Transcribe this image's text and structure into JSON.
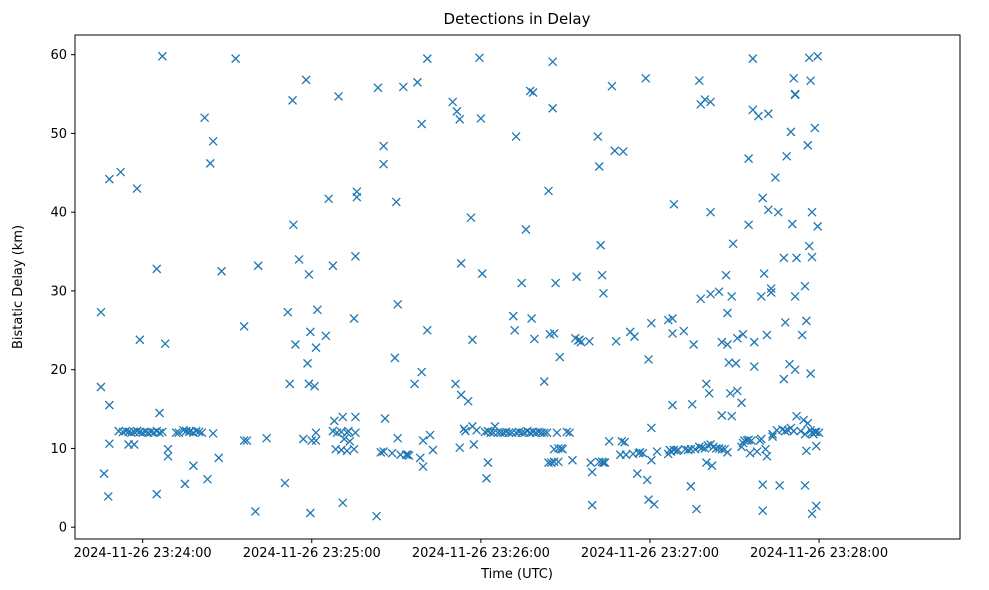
{
  "chart_data": {
    "type": "scatter",
    "title": "Detections in Delay",
    "xlabel": "Time (UTC)",
    "ylabel": "Bistatic Delay (km)",
    "x_unit": "seconds after 2024-11-26 23:23:00",
    "xlim": [
      36,
      350
    ],
    "ylim": [
      -1.5,
      62.5
    ],
    "marker": "x",
    "color": "#1f77b4",
    "grid": false,
    "x_ticks": [
      {
        "value": 60,
        "label": "2024-11-26 23:24:00"
      },
      {
        "value": 120,
        "label": "2024-11-26 23:25:00"
      },
      {
        "value": 180,
        "label": "2024-11-26 23:26:00"
      },
      {
        "value": 240,
        "label": "2024-11-26 23:27:00"
      },
      {
        "value": 300,
        "label": "2024-11-26 23:28:00"
      }
    ],
    "y_ticks": [
      {
        "value": 0,
        "label": "0"
      },
      {
        "value": 10,
        "label": "10"
      },
      {
        "value": 20,
        "label": "20"
      },
      {
        "value": 30,
        "label": "30"
      },
      {
        "value": 40,
        "label": "40"
      },
      {
        "value": 50,
        "label": "50"
      },
      {
        "value": 60,
        "label": "60"
      }
    ],
    "points": [
      [
        45.2,
        27.3
      ],
      [
        45.2,
        17.8
      ],
      [
        46.3,
        6.8
      ],
      [
        47.8,
        3.9
      ],
      [
        48.2,
        15.5
      ],
      [
        48.2,
        10.6
      ],
      [
        48.2,
        44.2
      ],
      [
        51.5,
        12.2
      ],
      [
        52.2,
        45.1
      ],
      [
        53.0,
        12.1
      ],
      [
        54.0,
        12.2
      ],
      [
        55.0,
        12.1
      ],
      [
        55.0,
        10.5
      ],
      [
        56.0,
        12.0
      ],
      [
        57.0,
        12.1
      ],
      [
        57.0,
        10.5
      ],
      [
        58.0,
        43.0
      ],
      [
        58.0,
        12.2
      ],
      [
        59.0,
        23.8
      ],
      [
        59.0,
        12.1
      ],
      [
        60.0,
        12.0
      ],
      [
        61.0,
        12.1
      ],
      [
        62.0,
        12.0
      ],
      [
        63.0,
        12.1
      ],
      [
        64.0,
        12.0
      ],
      [
        65.0,
        32.8
      ],
      [
        65.0,
        4.2
      ],
      [
        65.0,
        12.2
      ],
      [
        66.0,
        14.5
      ],
      [
        66.0,
        12.0
      ],
      [
        67.0,
        59.8
      ],
      [
        67.0,
        12.1
      ],
      [
        68.0,
        23.3
      ],
      [
        69.0,
        9.0
      ],
      [
        69.0,
        9.9
      ],
      [
        71.9,
        12.0
      ],
      [
        72.8,
        12.0
      ],
      [
        74.5,
        12.3
      ],
      [
        75.0,
        5.5
      ],
      [
        75.5,
        12.2
      ],
      [
        76.5,
        12.1
      ],
      [
        77.0,
        12.2
      ],
      [
        78.0,
        7.8
      ],
      [
        78.0,
        12.0
      ],
      [
        79.0,
        12.2
      ],
      [
        80.0,
        12.1
      ],
      [
        81.0,
        12.0
      ],
      [
        82.0,
        52.0
      ],
      [
        83.0,
        6.1
      ],
      [
        84.0,
        46.2
      ],
      [
        85.0,
        49.0
      ],
      [
        85.0,
        11.9
      ],
      [
        87.0,
        8.8
      ],
      [
        88.0,
        32.5
      ],
      [
        93.0,
        59.5
      ],
      [
        96.0,
        25.5
      ],
      [
        96.0,
        11.0
      ],
      [
        97.0,
        11.0
      ],
      [
        100.0,
        2.0
      ],
      [
        101.0,
        33.2
      ],
      [
        104.0,
        11.3
      ],
      [
        110.5,
        5.6
      ],
      [
        111.5,
        27.3
      ],
      [
        112.2,
        18.2
      ],
      [
        113.2,
        54.2
      ],
      [
        113.5,
        38.4
      ],
      [
        114.2,
        23.2
      ],
      [
        115.5,
        34.0
      ],
      [
        117.0,
        11.2
      ],
      [
        118.0,
        56.8
      ],
      [
        119.0,
        32.1
      ],
      [
        118.5,
        20.8
      ],
      [
        119.0,
        18.2
      ],
      [
        119.5,
        24.8
      ],
      [
        119.5,
        1.8
      ],
      [
        120.0,
        11.0
      ],
      [
        121.0,
        17.9
      ],
      [
        121.5,
        22.8
      ],
      [
        122.0,
        27.6
      ],
      [
        121.5,
        11.0
      ],
      [
        121.5,
        12.0
      ],
      [
        125.0,
        24.3
      ],
      [
        126.0,
        41.7
      ],
      [
        127.5,
        33.2
      ],
      [
        127.5,
        12.2
      ],
      [
        128.0,
        13.5
      ],
      [
        128.5,
        9.9
      ],
      [
        129.0,
        12.0
      ],
      [
        129.5,
        54.7
      ],
      [
        130.5,
        9.8
      ],
      [
        130.5,
        12.1
      ],
      [
        131.0,
        14.0
      ],
      [
        131.5,
        11.2
      ],
      [
        132.5,
        12.0
      ],
      [
        132.5,
        9.7
      ],
      [
        133.0,
        12.2
      ],
      [
        133.5,
        10.9
      ],
      [
        131.0,
        3.1
      ],
      [
        135.0,
        26.5
      ],
      [
        135.5,
        34.4
      ],
      [
        135.5,
        12.0
      ],
      [
        136.0,
        42.6
      ],
      [
        136.0,
        41.9
      ],
      [
        135.5,
        14.0
      ],
      [
        135.0,
        9.9
      ],
      [
        143.5,
        55.8
      ],
      [
        144.5,
        9.5
      ],
      [
        145.5,
        48.4
      ],
      [
        145.5,
        46.1
      ],
      [
        146.0,
        13.8
      ],
      [
        145.5,
        9.6
      ],
      [
        148.5,
        9.4
      ],
      [
        149.5,
        21.5
      ],
      [
        150.0,
        41.3
      ],
      [
        150.5,
        28.3
      ],
      [
        150.5,
        11.3
      ],
      [
        151.5,
        9.2
      ],
      [
        152.5,
        55.9
      ],
      [
        153.5,
        9.2
      ],
      [
        154.0,
        9.2
      ],
      [
        154.5,
        9.1
      ],
      [
        156.5,
        18.2
      ],
      [
        157.5,
        56.5
      ],
      [
        159.0,
        51.2
      ],
      [
        158.5,
        8.8
      ],
      [
        159.0,
        19.7
      ],
      [
        159.5,
        7.7
      ],
      [
        159.5,
        11.0
      ],
      [
        161.0,
        59.5
      ],
      [
        161.0,
        25.0
      ],
      [
        162.0,
        11.7
      ],
      [
        163.0,
        9.8
      ],
      [
        143.0,
        1.4
      ],
      [
        170.0,
        54.0
      ],
      [
        171.0,
        18.2
      ],
      [
        171.5,
        52.8
      ],
      [
        172.5,
        51.8
      ],
      [
        173.0,
        33.5
      ],
      [
        173.0,
        16.8
      ],
      [
        172.5,
        10.1
      ],
      [
        174.0,
        12.5
      ],
      [
        174.5,
        12.2
      ],
      [
        175.5,
        16.0
      ],
      [
        176.5,
        39.3
      ],
      [
        177.0,
        23.8
      ],
      [
        177.0,
        12.8
      ],
      [
        177.5,
        10.5
      ],
      [
        178.5,
        12.3
      ],
      [
        179.5,
        59.6
      ],
      [
        180.0,
        51.9
      ],
      [
        180.5,
        32.2
      ],
      [
        181.5,
        12.1
      ],
      [
        182.0,
        6.2
      ],
      [
        182.5,
        8.2
      ],
      [
        182.5,
        12.2
      ],
      [
        183.5,
        12.0
      ],
      [
        184.5,
        12.0
      ],
      [
        185.0,
        12.8
      ],
      [
        186.0,
        12.0
      ],
      [
        187.0,
        12.0
      ],
      [
        188.0,
        12.0
      ],
      [
        189.0,
        12.1
      ],
      [
        190.0,
        12.0
      ],
      [
        191.0,
        12.0
      ],
      [
        191.5,
        26.8
      ],
      [
        192.0,
        25.0
      ],
      [
        192.5,
        49.6
      ],
      [
        192.5,
        12.0
      ],
      [
        193.5,
        12.1
      ],
      [
        194.5,
        31.0
      ],
      [
        194.5,
        12.0
      ],
      [
        195.5,
        12.0
      ],
      [
        196.0,
        37.8
      ],
      [
        196.5,
        12.2
      ],
      [
        197.5,
        12.0
      ],
      [
        197.5,
        55.4
      ],
      [
        198.0,
        26.5
      ],
      [
        198.5,
        55.2
      ],
      [
        198.5,
        12.1
      ],
      [
        199.0,
        23.9
      ],
      [
        199.5,
        12.0
      ],
      [
        200.5,
        12.1
      ],
      [
        201.5,
        12.0
      ],
      [
        202.5,
        12.0
      ],
      [
        202.5,
        18.5
      ],
      [
        203.5,
        12.0
      ],
      [
        204.0,
        42.7
      ],
      [
        204.5,
        24.5
      ],
      [
        204.0,
        8.2
      ],
      [
        205.0,
        8.2
      ],
      [
        205.5,
        59.1
      ],
      [
        205.5,
        53.2
      ],
      [
        206.0,
        24.6
      ],
      [
        206.0,
        8.3
      ],
      [
        206.0,
        9.9
      ],
      [
        206.5,
        31.0
      ],
      [
        207.0,
        12.0
      ],
      [
        207.5,
        8.3
      ],
      [
        207.5,
        10.0
      ],
      [
        208.0,
        21.6
      ],
      [
        208.5,
        10.0
      ],
      [
        209.0,
        9.9
      ],
      [
        210.5,
        12.1
      ],
      [
        211.5,
        12.0
      ],
      [
        212.5,
        8.5
      ],
      [
        213.5,
        24.0
      ],
      [
        214.0,
        31.8
      ],
      [
        214.5,
        23.7
      ],
      [
        215.0,
        23.8
      ],
      [
        215.5,
        23.5
      ],
      [
        218.5,
        23.6
      ],
      [
        219.0,
        8.2
      ],
      [
        219.5,
        2.8
      ],
      [
        219.5,
        7.0
      ],
      [
        221.5,
        49.6
      ],
      [
        222.0,
        8.3
      ],
      [
        222.0,
        45.8
      ],
      [
        222.5,
        35.8
      ],
      [
        223.0,
        8.3
      ],
      [
        223.5,
        8.2
      ],
      [
        223.0,
        32.0
      ],
      [
        223.5,
        29.7
      ],
      [
        224.0,
        8.2
      ],
      [
        225.5,
        10.9
      ],
      [
        226.5,
        56.0
      ],
      [
        227.5,
        47.8
      ],
      [
        228.0,
        23.6
      ],
      [
        229.5,
        9.2
      ],
      [
        230.5,
        47.7
      ],
      [
        230.0,
        10.9
      ],
      [
        231.0,
        10.8
      ],
      [
        231.5,
        9.2
      ],
      [
        233.0,
        24.8
      ],
      [
        234.0,
        9.3
      ],
      [
        234.5,
        24.2
      ],
      [
        235.5,
        6.8
      ],
      [
        236.0,
        9.4
      ],
      [
        236.5,
        9.5
      ],
      [
        237.5,
        9.4
      ],
      [
        238.5,
        57.0
      ],
      [
        239.0,
        6.0
      ],
      [
        239.5,
        21.3
      ],
      [
        239.5,
        3.5
      ],
      [
        240.5,
        8.5
      ],
      [
        240.5,
        25.9
      ],
      [
        240.5,
        12.6
      ],
      [
        241.5,
        2.9
      ],
      [
        242.5,
        9.6
      ],
      [
        246.5,
        26.3
      ],
      [
        246.5,
        9.3
      ],
      [
        247.0,
        9.8
      ],
      [
        247.5,
        9.6
      ],
      [
        248.0,
        15.5
      ],
      [
        248.0,
        24.6
      ],
      [
        248.0,
        26.5
      ],
      [
        248.5,
        41.0
      ],
      [
        248.5,
        9.8
      ],
      [
        249.5,
        9.7
      ],
      [
        250.0,
        9.8
      ],
      [
        252.0,
        24.9
      ],
      [
        252.5,
        9.9
      ],
      [
        253.5,
        9.8
      ],
      [
        254.5,
        5.2
      ],
      [
        254.5,
        9.9
      ],
      [
        255.0,
        15.6
      ],
      [
        255.5,
        23.2
      ],
      [
        256.0,
        9.9
      ],
      [
        256.5,
        2.3
      ],
      [
        257.5,
        10.2
      ],
      [
        257.5,
        56.7
      ],
      [
        258.0,
        29.0
      ],
      [
        258.0,
        53.7
      ],
      [
        258.5,
        10.1
      ],
      [
        259.5,
        54.3
      ],
      [
        259.5,
        10.0
      ],
      [
        260.0,
        18.2
      ],
      [
        260.0,
        8.2
      ],
      [
        260.5,
        10.4
      ],
      [
        261.0,
        17.0
      ],
      [
        261.5,
        54.0
      ],
      [
        261.5,
        40.0
      ],
      [
        261.5,
        29.6
      ],
      [
        261.5,
        10.5
      ],
      [
        262.0,
        7.8
      ],
      [
        262.5,
        10.2
      ],
      [
        263.5,
        10.0
      ],
      [
        264.5,
        29.9
      ],
      [
        264.5,
        10.0
      ],
      [
        265.5,
        14.2
      ],
      [
        265.5,
        9.9
      ],
      [
        265.5,
        23.5
      ],
      [
        266.5,
        9.9
      ],
      [
        267.0,
        32.0
      ],
      [
        267.5,
        23.2
      ],
      [
        267.5,
        27.2
      ],
      [
        267.5,
        9.5
      ],
      [
        268.0,
        20.9
      ],
      [
        268.5,
        17.0
      ],
      [
        269.0,
        29.3
      ],
      [
        269.0,
        14.1
      ],
      [
        269.5,
        36.0
      ],
      [
        270.5,
        20.8
      ],
      [
        271.0,
        17.3
      ],
      [
        271.0,
        24.0
      ],
      [
        272.5,
        15.8
      ],
      [
        272.5,
        10.2
      ],
      [
        273.0,
        10.7
      ],
      [
        273.0,
        24.5
      ],
      [
        273.5,
        11.0
      ],
      [
        274.5,
        11.0
      ],
      [
        275.0,
        46.8
      ],
      [
        275.0,
        38.4
      ],
      [
        275.0,
        11.1
      ],
      [
        275.5,
        9.4
      ],
      [
        276.0,
        11.0
      ],
      [
        276.5,
        59.5
      ],
      [
        276.5,
        53.0
      ],
      [
        277.0,
        20.4
      ],
      [
        277.0,
        23.5
      ],
      [
        278.0,
        9.6
      ],
      [
        278.5,
        52.2
      ],
      [
        279.0,
        11.0
      ],
      [
        279.5,
        29.3
      ],
      [
        279.5,
        11.2
      ],
      [
        280.0,
        41.8
      ],
      [
        280.0,
        5.4
      ],
      [
        280.0,
        2.1
      ],
      [
        280.5,
        32.2
      ],
      [
        281.0,
        9.9
      ],
      [
        281.5,
        9.0
      ],
      [
        281.5,
        24.4
      ],
      [
        282.0,
        52.5
      ],
      [
        282.0,
        40.3
      ],
      [
        283.0,
        29.8
      ],
      [
        283.0,
        30.3
      ],
      [
        283.5,
        11.5
      ],
      [
        283.5,
        11.8
      ],
      [
        284.5,
        44.4
      ],
      [
        285.0,
        12.3
      ],
      [
        285.5,
        40.0
      ],
      [
        286.0,
        5.3
      ],
      [
        287.0,
        12.4
      ],
      [
        287.5,
        34.2
      ],
      [
        287.5,
        18.8
      ],
      [
        288.0,
        12.2
      ],
      [
        288.0,
        26.0
      ],
      [
        288.5,
        47.1
      ],
      [
        289.0,
        12.3
      ],
      [
        289.5,
        20.7
      ],
      [
        290.0,
        50.2
      ],
      [
        290.0,
        12.6
      ],
      [
        290.5,
        38.5
      ],
      [
        291.0,
        12.2
      ],
      [
        291.0,
        57.0
      ],
      [
        291.5,
        55.0
      ],
      [
        291.5,
        54.9
      ],
      [
        291.5,
        29.3
      ],
      [
        291.5,
        20.0
      ],
      [
        292.0,
        14.1
      ],
      [
        292.0,
        34.2
      ],
      [
        293.5,
        12.2
      ],
      [
        294.0,
        24.4
      ],
      [
        294.5,
        13.6
      ],
      [
        295.0,
        5.3
      ],
      [
        295.0,
        11.8
      ],
      [
        295.0,
        30.6
      ],
      [
        295.5,
        26.2
      ],
      [
        295.5,
        9.7
      ],
      [
        296.0,
        13.2
      ],
      [
        296.0,
        48.5
      ],
      [
        296.5,
        35.7
      ],
      [
        296.5,
        59.6
      ],
      [
        297.0,
        12.3
      ],
      [
        297.0,
        19.5
      ],
      [
        297.0,
        56.7
      ],
      [
        297.5,
        1.7
      ],
      [
        297.5,
        40.0
      ],
      [
        297.5,
        34.3
      ],
      [
        297.5,
        12.0
      ],
      [
        298.0,
        11.8
      ],
      [
        298.5,
        12.1
      ],
      [
        298.5,
        50.7
      ],
      [
        299.0,
        10.3
      ],
      [
        299.0,
        2.7
      ],
      [
        299.0,
        12.1
      ],
      [
        299.5,
        59.8
      ],
      [
        299.5,
        38.2
      ],
      [
        300.0,
        12.0
      ]
    ]
  }
}
